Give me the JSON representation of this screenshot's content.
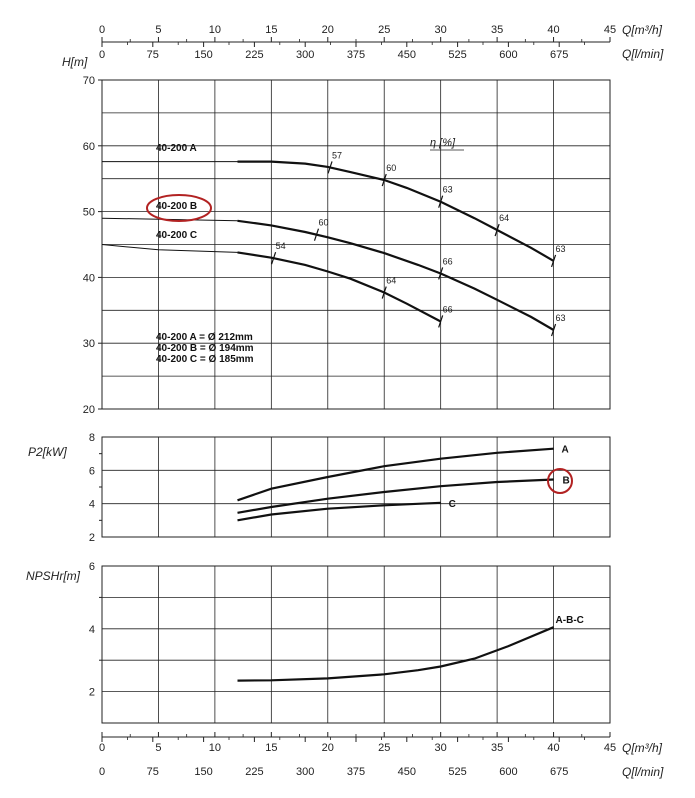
{
  "chart_data": {
    "type": "line",
    "top_axes": {
      "q_m3h": {
        "label": "Q[m³/h]",
        "ticks": [
          "0",
          "5",
          "10",
          "15",
          "20",
          "25",
          "30",
          "35",
          "40",
          "45"
        ]
      },
      "q_lmin": {
        "label": "Q[l/min]",
        "ticks": [
          "0",
          "75",
          "150",
          "225",
          "300",
          "375",
          "450",
          "525",
          "600",
          "675"
        ]
      }
    },
    "bottom_axes": {
      "q_m3h": {
        "label": "Q[m³/h]",
        "ticks": [
          "0",
          "5",
          "10",
          "15",
          "20",
          "25",
          "30",
          "35",
          "40",
          "45"
        ]
      },
      "q_lmin": {
        "label": "Q[l/min]",
        "ticks": [
          "0",
          "75",
          "150",
          "225",
          "300",
          "375",
          "450",
          "525",
          "600",
          "675"
        ]
      }
    },
    "head_chart": {
      "ylabel": "H[m]",
      "ylim": [
        20,
        70
      ],
      "yticks": [
        "20",
        "30",
        "40",
        "50",
        "60",
        "70"
      ],
      "xlim": [
        0,
        45
      ],
      "efficiency_label": "η [%]",
      "series": [
        {
          "name": "40-200 A",
          "x": [
            12,
            15,
            18,
            20,
            22,
            25,
            27,
            30,
            33,
            35,
            38,
            40
          ],
          "y": [
            57.6,
            57.6,
            57.3,
            56.8,
            56.0,
            54.8,
            53.6,
            51.5,
            49.0,
            47.2,
            44.5,
            42.5
          ],
          "pre_x": [
            0,
            12
          ],
          "pre_y": [
            57.6,
            57.6
          ],
          "efficiency_marks": [
            {
              "x": 20.2,
              "label": "57"
            },
            {
              "x": 25,
              "label": "60"
            },
            {
              "x": 30,
              "label": "63"
            },
            {
              "x": 35,
              "label": "64"
            },
            {
              "x": 40,
              "label": "63"
            }
          ]
        },
        {
          "name": "40-200 B",
          "x": [
            12,
            15,
            18,
            20,
            22,
            25,
            28,
            30,
            33,
            35,
            38,
            40
          ],
          "y": [
            48.6,
            47.9,
            46.9,
            46.1,
            45.2,
            43.7,
            41.9,
            40.6,
            38.3,
            36.6,
            34.0,
            32.0
          ],
          "pre_x": [
            0,
            12
          ],
          "pre_y": [
            49.0,
            48.6
          ],
          "efficiency_marks": [
            {
              "x": 19,
              "label": "60"
            },
            {
              "x": 30,
              "label": "66"
            },
            {
              "x": 40,
              "label": "63"
            }
          ]
        },
        {
          "name": "40-200 C",
          "x": [
            12,
            15,
            18,
            20,
            22,
            25,
            27,
            30
          ],
          "y": [
            43.8,
            43.0,
            41.9,
            40.9,
            39.8,
            37.7,
            36.0,
            33.3
          ],
          "pre_x": [
            0,
            5,
            12
          ],
          "pre_y": [
            45.0,
            44.2,
            43.8
          ],
          "efficiency_marks": [
            {
              "x": 15.2,
              "label": "54"
            },
            {
              "x": 25,
              "label": "64"
            },
            {
              "x": 30,
              "label": "66"
            }
          ]
        }
      ],
      "highlighted": "40-200 B",
      "diameters": [
        {
          "text": "40-200 A = Ø 212mm"
        },
        {
          "text": "40-200 B = Ø 194mm"
        },
        {
          "text": "40-200 C = Ø 185mm"
        }
      ]
    },
    "power_chart": {
      "ylabel": "P2[kW]",
      "ylim": [
        2,
        8
      ],
      "yticks": [
        "2",
        "4",
        "6",
        "8"
      ],
      "series": [
        {
          "name": "A",
          "x": [
            12,
            15,
            20,
            25,
            30,
            35,
            40
          ],
          "y": [
            4.2,
            4.9,
            5.6,
            6.25,
            6.7,
            7.05,
            7.3
          ]
        },
        {
          "name": "B",
          "x": [
            12,
            15,
            20,
            25,
            30,
            35,
            40
          ],
          "y": [
            3.45,
            3.8,
            4.3,
            4.7,
            5.05,
            5.3,
            5.45
          ]
        },
        {
          "name": "C",
          "x": [
            12,
            15,
            20,
            25,
            30
          ],
          "y": [
            3.0,
            3.35,
            3.7,
            3.9,
            4.05
          ]
        }
      ],
      "highlighted": "B"
    },
    "npsh_chart": {
      "ylabel": "NPSHr[m]",
      "ylim": [
        1,
        6
      ],
      "yticks": [
        "2",
        "4",
        "6"
      ],
      "series": [
        {
          "name": "A-B-C",
          "x": [
            12,
            15,
            20,
            25,
            28,
            30,
            33,
            36,
            40
          ],
          "y": [
            2.35,
            2.36,
            2.42,
            2.55,
            2.68,
            2.8,
            3.05,
            3.45,
            4.05
          ]
        }
      ]
    }
  }
}
